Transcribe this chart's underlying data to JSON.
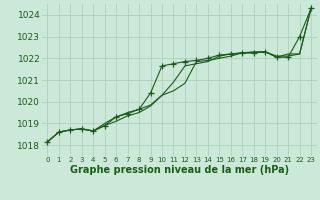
{
  "title": "Graphe pression niveau de la mer (hPa)",
  "background_color": "#cce8d8",
  "grid_color": "#aaccbb",
  "line_color": "#1a5c1a",
  "xlim": [
    -0.5,
    23.5
  ],
  "ylim": [
    1017.5,
    1024.5
  ],
  "yticks": [
    1018,
    1019,
    1020,
    1021,
    1022,
    1023,
    1024
  ],
  "xticks": [
    0,
    1,
    2,
    3,
    4,
    5,
    6,
    7,
    8,
    9,
    10,
    11,
    12,
    13,
    14,
    15,
    16,
    17,
    18,
    19,
    20,
    21,
    22,
    23
  ],
  "series": [
    {
      "y": [
        1018.15,
        1018.6,
        1018.7,
        1018.75,
        1018.65,
        1018.9,
        1019.3,
        1019.45,
        1019.65,
        1020.4,
        1021.65,
        1021.75,
        1021.85,
        1021.9,
        1022.0,
        1022.15,
        1022.2,
        1022.25,
        1022.25,
        1022.3,
        1022.05,
        1022.05,
        1023.0,
        1024.3
      ],
      "marker": true
    },
    {
      "y": [
        1018.15,
        1018.6,
        1018.7,
        1018.75,
        1018.65,
        1018.9,
        1019.1,
        1019.35,
        1019.5,
        1019.8,
        1020.3,
        1020.9,
        1021.65,
        1021.75,
        1021.85,
        1022.1,
        1022.2,
        1022.25,
        1022.3,
        1022.3,
        1022.05,
        1022.2,
        1022.2,
        1024.3
      ],
      "marker": false
    },
    {
      "y": [
        1018.15,
        1018.6,
        1018.7,
        1018.75,
        1018.65,
        1019.0,
        1019.3,
        1019.5,
        1019.65,
        1019.85,
        1020.3,
        1020.5,
        1020.85,
        1021.85,
        1021.9,
        1022.0,
        1022.1,
        1022.25,
        1022.25,
        1022.3,
        1022.1,
        1022.1,
        1022.2,
        1024.3
      ],
      "marker": false
    }
  ],
  "xlabel_fontsize": 7,
  "ytick_fontsize": 6.5,
  "xtick_fontsize": 5.0
}
